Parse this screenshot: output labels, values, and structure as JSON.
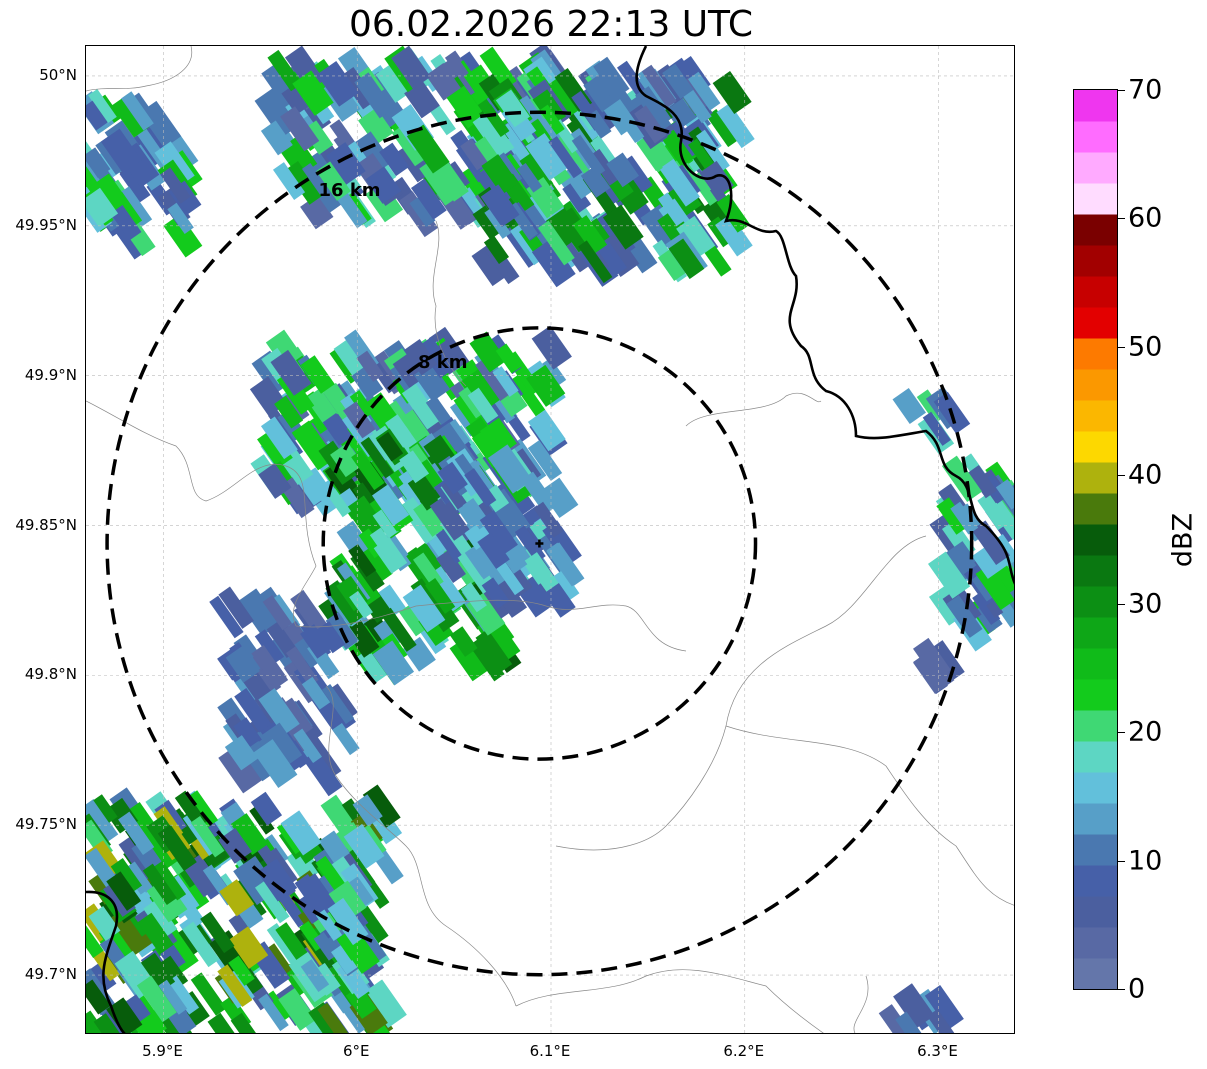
{
  "title": "06.02.2026 22:13 UTC",
  "map": {
    "lat_ticks": [
      {
        "label": "50°N",
        "value": 50.0
      },
      {
        "label": "49.95°N",
        "value": 49.95
      },
      {
        "label": "49.9°N",
        "value": 49.9
      },
      {
        "label": "49.85°N",
        "value": 49.85
      },
      {
        "label": "49.8°N",
        "value": 49.8
      },
      {
        "label": "49.75°N",
        "value": 49.75
      },
      {
        "label": "49.7°N",
        "value": 49.7
      }
    ],
    "lon_ticks": [
      {
        "label": "5.9°E",
        "value": 5.9
      },
      {
        "label": "6°E",
        "value": 6.0
      },
      {
        "label": "6.1°E",
        "value": 6.1
      },
      {
        "label": "6.2°E",
        "value": 6.2
      },
      {
        "label": "6.3°E",
        "value": 6.3
      }
    ],
    "lon_range": [
      5.86,
      6.34
    ],
    "lat_range": [
      49.68,
      50.01
    ],
    "radar_site": {
      "lon": 6.094,
      "lat": 49.844
    },
    "range_rings": [
      {
        "label": "8 km",
        "radius_km": 8
      },
      {
        "label": "16 km",
        "radius_km": 16
      }
    ],
    "grid": true
  },
  "colorbar": {
    "label": "dBZ",
    "ticks": [
      "0",
      "10",
      "20",
      "30",
      "40",
      "50",
      "60",
      "70"
    ],
    "min": 0,
    "max": 70,
    "step": 2.5,
    "colors": [
      "#6476aa",
      "#5869a4",
      "#4b5f9f",
      "#4660a8",
      "#4a78b0",
      "#579fc8",
      "#62c0db",
      "#5dd6c3",
      "#3fd874",
      "#13cb1c",
      "#10bb19",
      "#0ea717",
      "#0c8f14",
      "#0a7811",
      "#075c0b",
      "#4a7a0c",
      "#aeb20d",
      "#fdd800",
      "#fbb700",
      "#fb9800",
      "#fd7a00",
      "#e30000",
      "#c70000",
      "#a20000",
      "#7a0000",
      "#ffdcff",
      "#ffaaff",
      "#ff6cff",
      "#ef36ef"
    ]
  }
}
